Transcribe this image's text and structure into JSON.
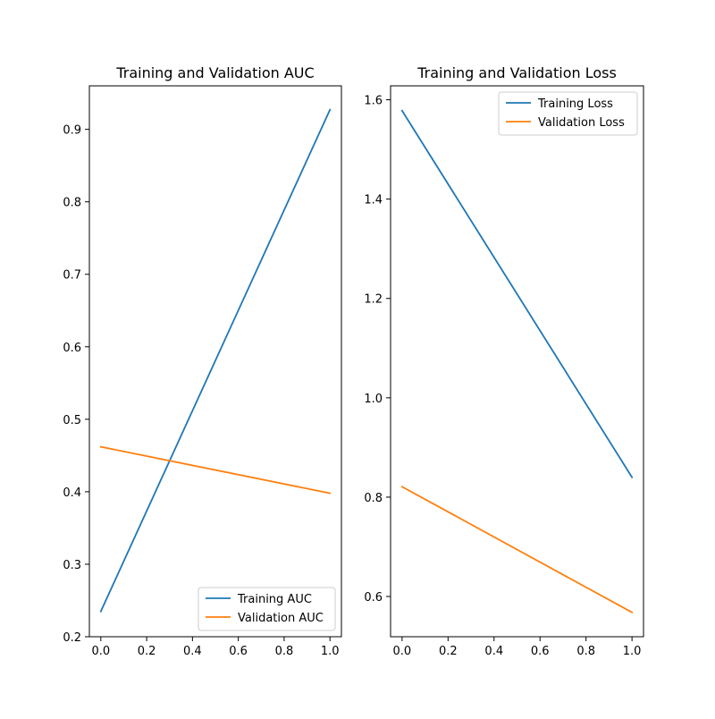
{
  "chart_data": [
    {
      "type": "line",
      "title": "Training and Validation AUC",
      "xlabel": "",
      "ylabel": "",
      "xlim": [
        -0.05,
        1.05
      ],
      "ylim": [
        0.2,
        0.96
      ],
      "xticks": [
        0.0,
        0.2,
        0.4,
        0.6,
        0.8,
        1.0
      ],
      "xtick_labels": [
        "0.0",
        "0.2",
        "0.4",
        "0.6",
        "0.8",
        "1.0"
      ],
      "yticks": [
        0.2,
        0.3,
        0.4,
        0.5,
        0.6,
        0.7,
        0.8,
        0.9
      ],
      "ytick_labels": [
        "0.2",
        "0.3",
        "0.4",
        "0.5",
        "0.6",
        "0.7",
        "0.8",
        "0.9"
      ],
      "legend_position": "lower-right",
      "grid": false,
      "x": [
        0,
        1
      ],
      "series": [
        {
          "name": "Training AUC",
          "color": "#1f77b4",
          "values": [
            0.235,
            0.927
          ]
        },
        {
          "name": "Validation AUC",
          "color": "#ff7f0e",
          "values": [
            0.462,
            0.398
          ]
        }
      ]
    },
    {
      "type": "line",
      "title": "Training and Validation Loss",
      "xlabel": "",
      "ylabel": "",
      "xlim": [
        -0.05,
        1.05
      ],
      "ylim": [
        0.519,
        1.628
      ],
      "xticks": [
        0.0,
        0.2,
        0.4,
        0.6,
        0.8,
        1.0
      ],
      "xtick_labels": [
        "0.0",
        "0.2",
        "0.4",
        "0.6",
        "0.8",
        "1.0"
      ],
      "yticks": [
        0.6,
        0.8,
        1.0,
        1.2,
        1.4,
        1.6
      ],
      "ytick_labels": [
        "0.6",
        "0.8",
        "1.0",
        "1.2",
        "1.4",
        "1.6"
      ],
      "legend_position": "upper-right",
      "grid": false,
      "x": [
        0,
        1
      ],
      "series": [
        {
          "name": "Training Loss",
          "color": "#1f77b4",
          "values": [
            1.578,
            0.84
          ]
        },
        {
          "name": "Validation Loss",
          "color": "#ff7f0e",
          "values": [
            0.821,
            0.568
          ]
        }
      ]
    }
  ]
}
